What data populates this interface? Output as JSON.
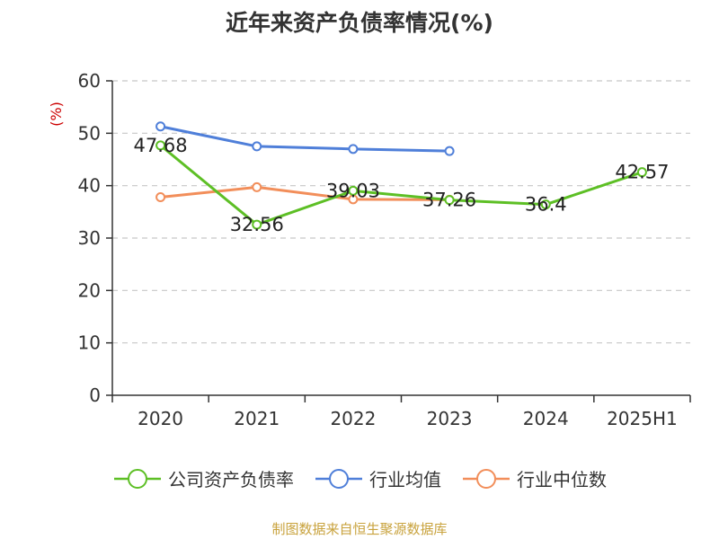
{
  "title": "近年来资产负债率情况(%)",
  "source": "制图数据来自恒生聚源数据库",
  "source_color": "#c8a23c",
  "chart_data": {
    "type": "line",
    "title": "近年来资产负债率情况(%)",
    "ylabel": "(%)",
    "xlabel": "",
    "ylim": [
      0,
      60
    ],
    "yticks": [
      0,
      10,
      20,
      30,
      40,
      50,
      60
    ],
    "grid": true,
    "legend_position": "bottom",
    "categories": [
      "2020",
      "2021",
      "2022",
      "2023",
      "2024",
      "2025H1"
    ],
    "series": [
      {
        "name": "公司资产负债率",
        "color": "#5dbf25",
        "show_labels": true,
        "values": [
          47.68,
          32.56,
          39.03,
          37.26,
          36.4,
          42.57
        ],
        "labels": [
          "47.68",
          "32.56",
          "39.03",
          "37.26",
          "36.4",
          "42.57"
        ]
      },
      {
        "name": "行业均值",
        "color": "#4f7fd9",
        "show_labels": false,
        "values": [
          51.3,
          47.5,
          47.0,
          46.6,
          null,
          null
        ]
      },
      {
        "name": "行业中位数",
        "color": "#f28e5a",
        "show_labels": false,
        "values": [
          37.8,
          39.7,
          37.4,
          37.3,
          null,
          null
        ]
      }
    ]
  }
}
